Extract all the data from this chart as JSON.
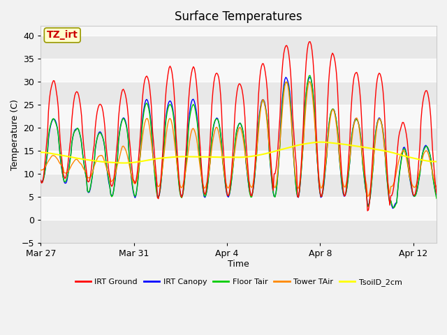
{
  "title": "Surface Temperatures",
  "xlabel": "Time",
  "ylabel": "Temperature (C)",
  "ylim": [
    -5,
    42
  ],
  "yticks": [
    -5,
    0,
    5,
    10,
    15,
    20,
    25,
    30,
    35,
    40
  ],
  "background_color": "#f2f2f2",
  "plot_bg_color": "#f2f2f2",
  "xtick_labels": [
    "Mar 27",
    "Mar 31",
    "Apr 4",
    "Apr 8",
    "Apr 12"
  ],
  "xtick_days": [
    0,
    4,
    8,
    12,
    16
  ],
  "xlim": [
    0,
    17
  ],
  "colors": {
    "IRT Ground": "#ff0000",
    "IRT Canopy": "#0000ff",
    "Floor Tair": "#00cc00",
    "Tower TAir": "#ff8800",
    "TsoilD_2cm": "#ffff00"
  },
  "legend_labels": [
    "IRT Ground",
    "IRT Canopy",
    "Floor Tair",
    "Tower TAir",
    "TsoilD_2cm"
  ],
  "annotation_text": "TZ_irt",
  "annotation_color": "#cc0000",
  "annotation_bg": "#ffffcc",
  "annotation_border": "#999900",
  "title_fontsize": 12,
  "axis_label_fontsize": 9,
  "tick_fontsize": 9,
  "linewidth": 1.0,
  "band_colors": [
    "#e8e8e8",
    "#f8f8f8"
  ],
  "band_edges": [
    -5,
    0,
    5,
    10,
    15,
    20,
    25,
    30,
    35,
    40,
    42
  ]
}
